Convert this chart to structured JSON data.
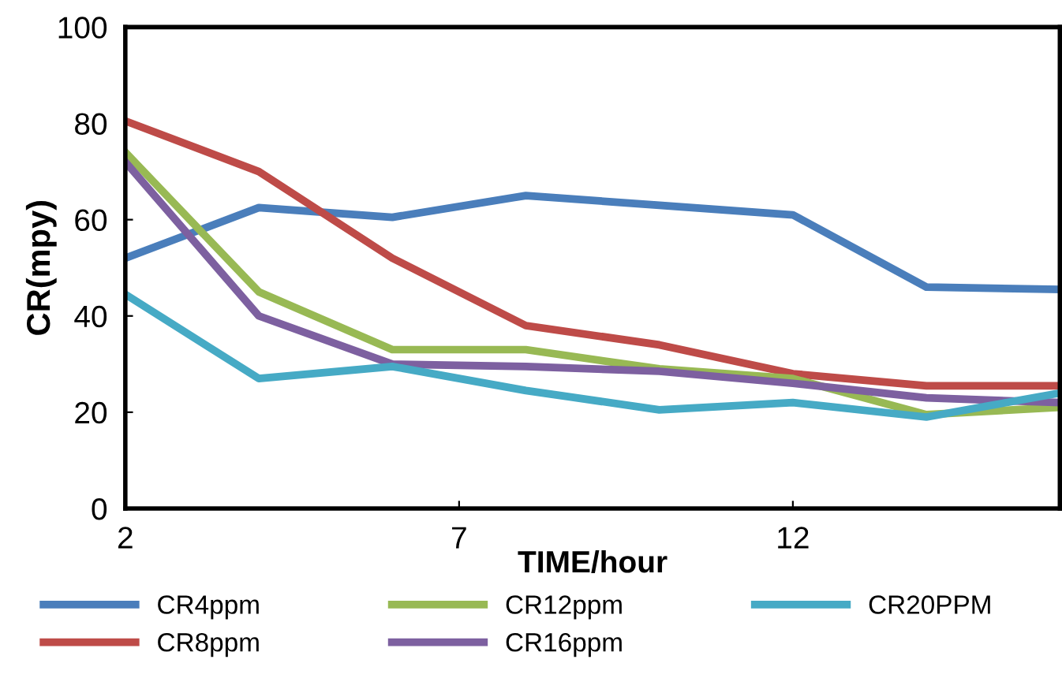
{
  "chart_data": {
    "type": "line",
    "xlabel": "TIME/hour",
    "ylabel": "CR(mpy)",
    "x": [
      2,
      4,
      6,
      8,
      10,
      12,
      14,
      16
    ],
    "series": [
      {
        "name": "CR4ppm",
        "color": "#4a7ebb",
        "values": [
          52,
          62.5,
          60.5,
          65,
          63,
          61,
          46,
          45.5
        ]
      },
      {
        "name": "CR8ppm",
        "color": "#be4b48",
        "values": [
          80.5,
          70,
          52,
          38,
          34,
          28,
          25.5,
          25.5
        ]
      },
      {
        "name": "CR12ppm",
        "color": "#98b954",
        "values": [
          74,
          45,
          33,
          33,
          29,
          27,
          19.5,
          21
        ]
      },
      {
        "name": "CR16ppm",
        "color": "#7d60a0",
        "values": [
          72,
          40,
          30,
          29.5,
          28.5,
          26,
          23,
          22
        ]
      },
      {
        "name": "CR20PPM",
        "color": "#46aac5",
        "values": [
          44.5,
          27,
          29.5,
          24.5,
          20.5,
          22,
          19,
          24
        ]
      }
    ],
    "xlim": [
      2,
      16
    ],
    "xticks": [
      2,
      7,
      12
    ],
    "ylim": [
      0,
      100
    ],
    "yticks": [
      0,
      20,
      40,
      60,
      80,
      100
    ],
    "grid": false,
    "legend": "bottom",
    "marker": "none",
    "line_style": "solid"
  }
}
